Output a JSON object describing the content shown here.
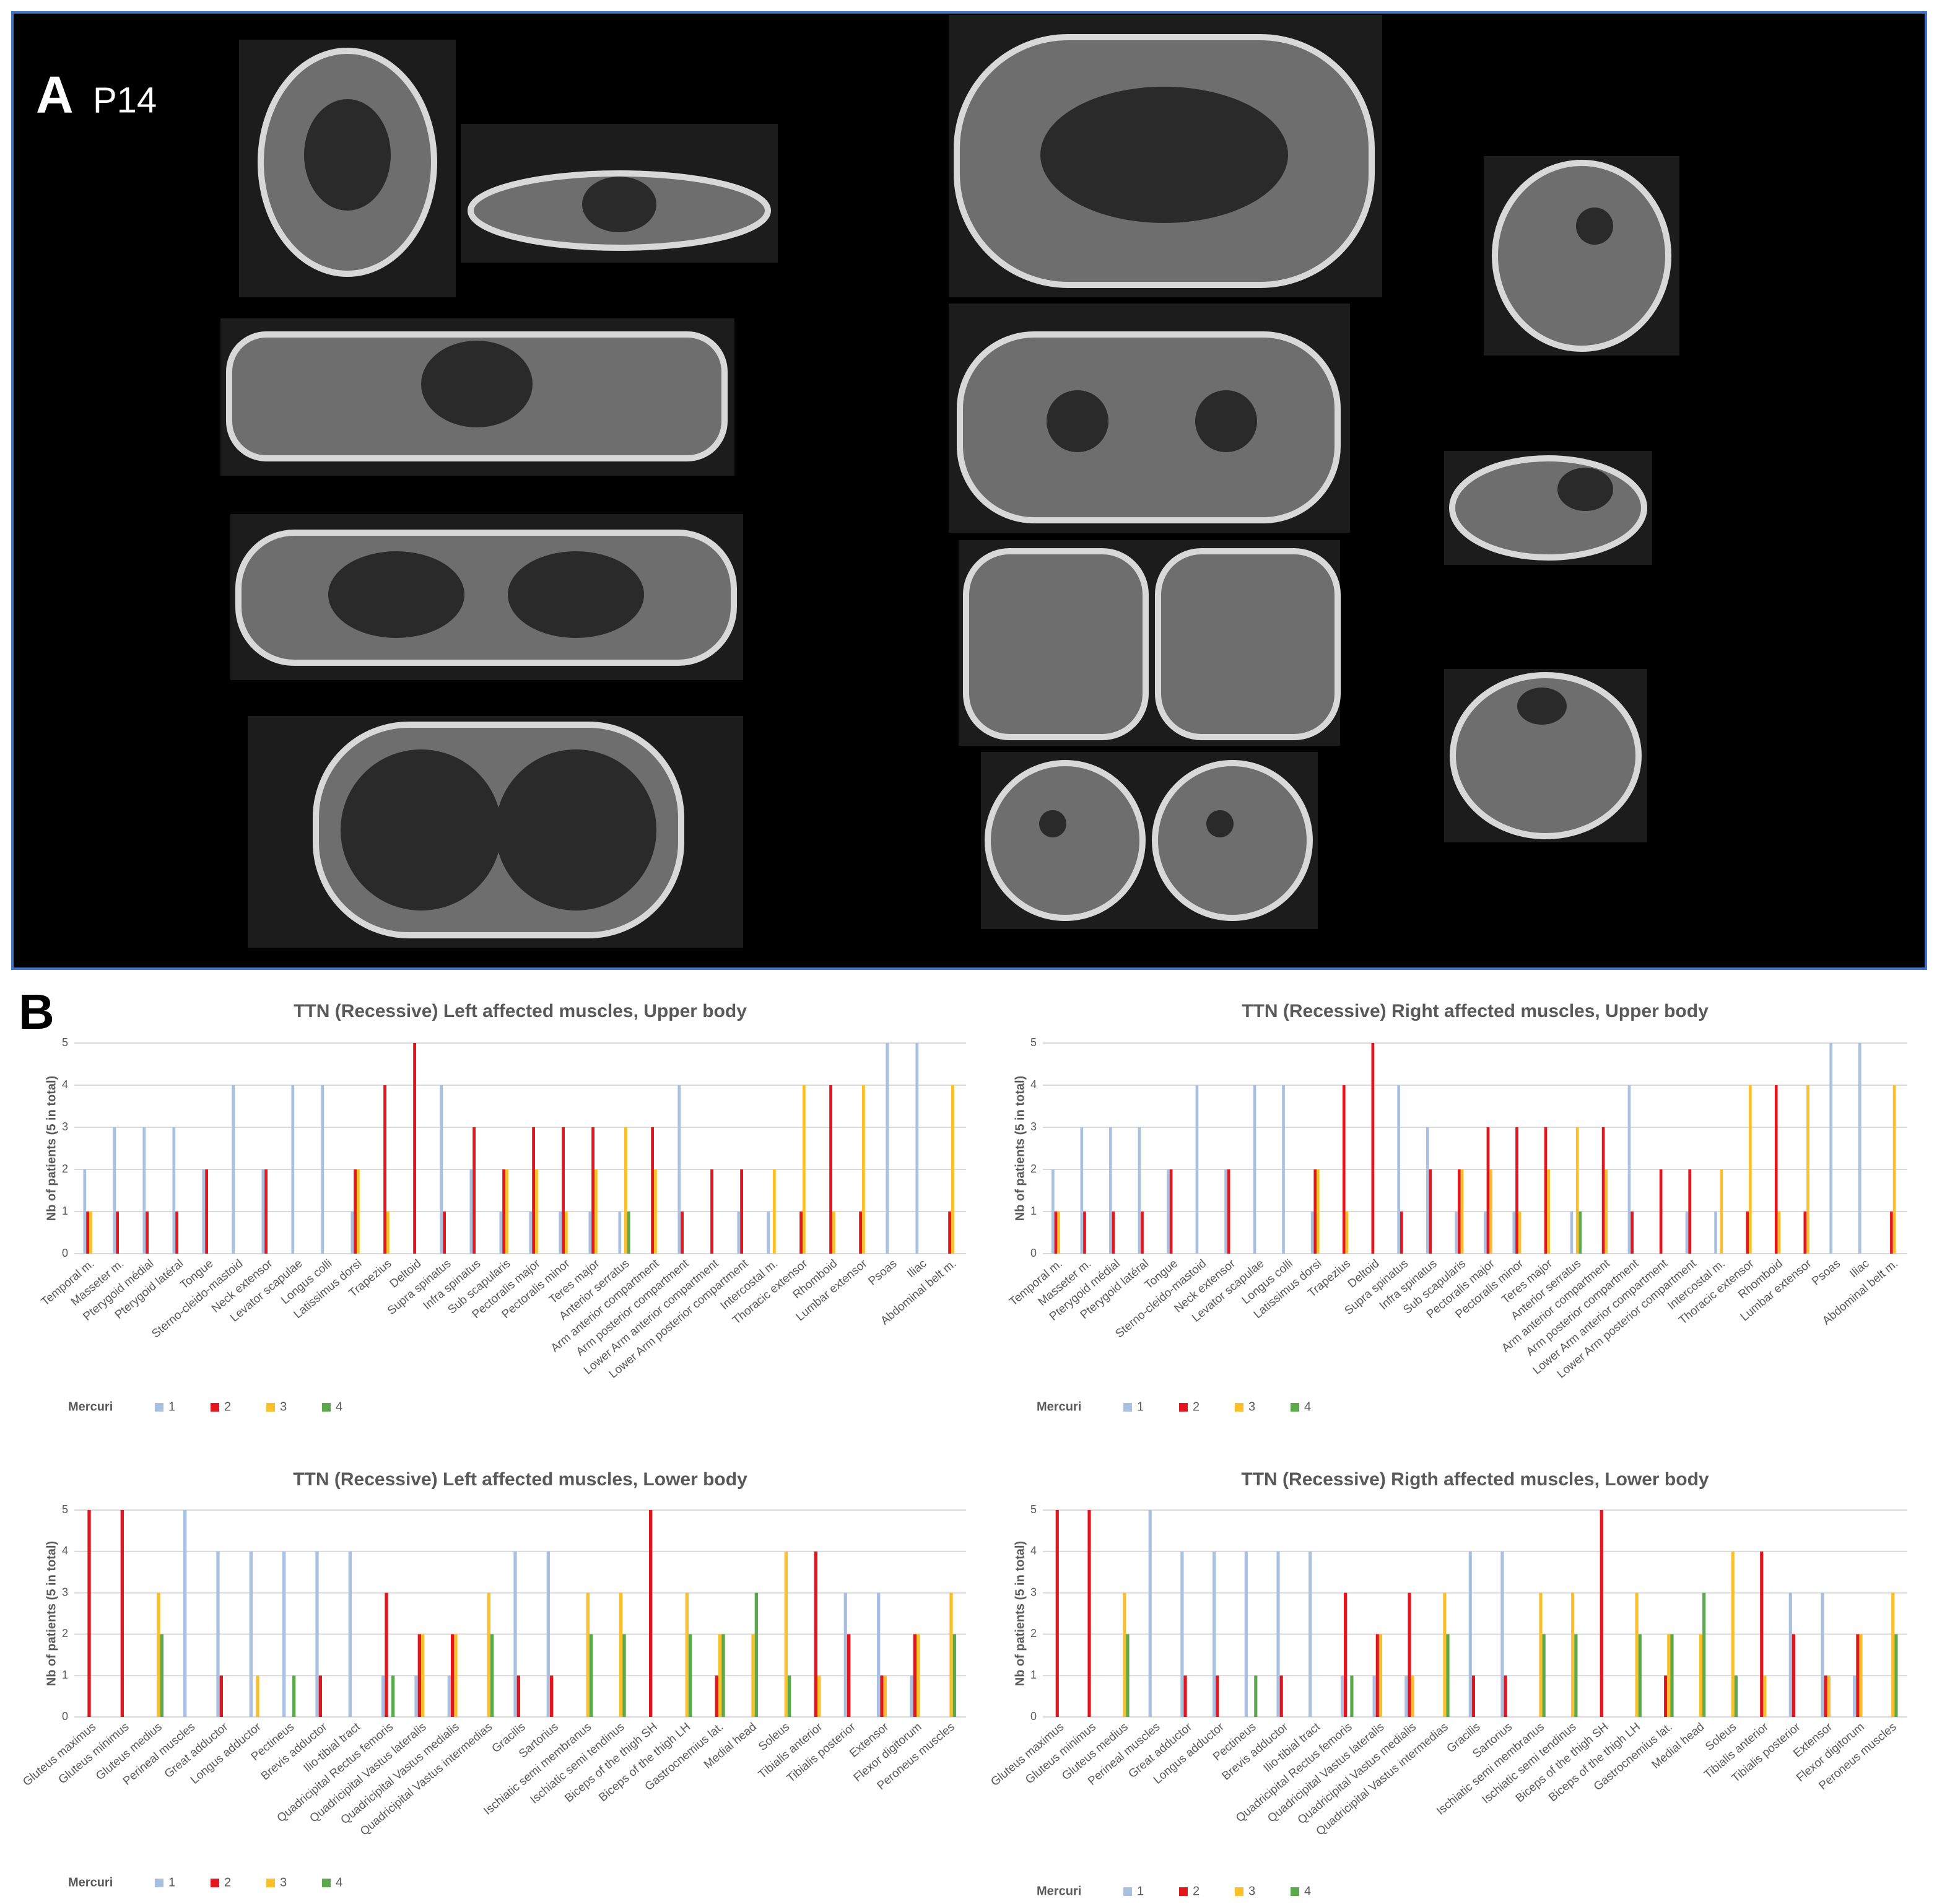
{
  "panels": {
    "a": "A",
    "a_patient": "P14",
    "b": "B"
  },
  "chart_data": [
    {
      "type": "bar",
      "title": "TTN (Recessive) Left affected muscles, Upper body",
      "ylabel": "Nb of patients (5 in total)",
      "legend_title": "Mercuri",
      "categories": [
        "Temporal m.",
        "Masseter m.",
        "Pterygoid médial",
        "Pterygoid latéral",
        "Tongue",
        "Sterno-cleido-mastoid",
        "Neck extensor",
        "Levator scapulae",
        "Longus colli",
        "Latissimus dorsi",
        "Trapezius",
        "Deltoid",
        "Supra spinatus",
        "Infra spinatus",
        "Sub scapularis",
        "Pectoralis major",
        "Pectoralis minor",
        "Teres major",
        "Anterior serratus",
        "Arm anterior compartment",
        "Arm posterior compartment",
        "Lower Arm anterior compartment",
        "Lower Arm posterior compartment",
        "Intercostal m.",
        "Thoracic extensor",
        "Rhomboid",
        "Lumbar extensor",
        "Psoas",
        "Iliac",
        "Abdominal belt m."
      ],
      "series": [
        {
          "name": "1",
          "color": "#aac0e0",
          "values": [
            2,
            3,
            3,
            3,
            2,
            4,
            2,
            4,
            4,
            1,
            0,
            0,
            4,
            2,
            1,
            1,
            1,
            1,
            1,
            0,
            4,
            0,
            1,
            1,
            0,
            0,
            0,
            5,
            5,
            0
          ]
        },
        {
          "name": "2",
          "color": "#e3161d",
          "values": [
            1,
            1,
            1,
            1,
            2,
            0,
            2,
            0,
            0,
            2,
            4,
            5,
            1,
            3,
            2,
            3,
            3,
            3,
            0,
            3,
            1,
            2,
            2,
            0,
            1,
            4,
            1,
            0,
            0,
            1
          ]
        },
        {
          "name": "3",
          "color": "#fbbf2b",
          "values": [
            1,
            0,
            0,
            0,
            0,
            0,
            0,
            0,
            0,
            2,
            1,
            0,
            0,
            0,
            2,
            2,
            1,
            2,
            3,
            2,
            0,
            0,
            0,
            2,
            4,
            1,
            4,
            0,
            0,
            4
          ]
        },
        {
          "name": "4",
          "color": "#5aa94b",
          "values": [
            0,
            0,
            0,
            0,
            0,
            0,
            0,
            0,
            0,
            0,
            0,
            0,
            0,
            0,
            0,
            0,
            0,
            0,
            1,
            0,
            0,
            0,
            0,
            0,
            0,
            0,
            0,
            0,
            0,
            0
          ]
        }
      ],
      "ylim": [
        0,
        5
      ],
      "yticks": [
        0,
        1,
        2,
        3,
        4,
        5
      ],
      "grid": true
    },
    {
      "type": "bar",
      "title": "TTN (Recessive) Right affected muscles, Upper body",
      "ylabel": "Nb of patients (5 in total)",
      "legend_title": "Mercuri",
      "categories": [
        "Temporal m.",
        "Masseter m.",
        "Pterygoid médial",
        "Pterygoid latéral",
        "Tongue",
        "Sterno-cleido-mastoid",
        "Neck extensor",
        "Levator scapulae",
        "Longus colli",
        "Latissimus dorsi",
        "Trapezius",
        "Deltoid",
        "Supra spinatus",
        "Infra spinatus",
        "Sub scapularis",
        "Pectoralis major",
        "Pectoralis minor",
        "Teres major",
        "Anterior serratus",
        "Arm anterior compartment",
        "Arm posterior compartment",
        "Lower Arm anterior compartment",
        "Lower Arm posterior compartment",
        "Intercostal m.",
        "Thoracic extensor",
        "Rhomboid",
        "Lumbar extensor",
        "Psoas",
        "Iliac",
        "Abdominal belt m."
      ],
      "series": [
        {
          "name": "1",
          "color": "#aac0e0",
          "values": [
            2,
            3,
            3,
            3,
            2,
            4,
            2,
            4,
            4,
            1,
            0,
            0,
            4,
            3,
            1,
            1,
            1,
            0,
            1,
            0,
            4,
            0,
            1,
            1,
            0,
            0,
            0,
            5,
            5,
            0
          ]
        },
        {
          "name": "2",
          "color": "#e3161d",
          "values": [
            1,
            1,
            1,
            1,
            2,
            0,
            2,
            0,
            0,
            2,
            4,
            5,
            1,
            2,
            2,
            3,
            3,
            3,
            0,
            3,
            1,
            2,
            2,
            0,
            1,
            4,
            1,
            0,
            0,
            1
          ]
        },
        {
          "name": "3",
          "color": "#fbbf2b",
          "values": [
            1,
            0,
            0,
            0,
            0,
            0,
            0,
            0,
            0,
            2,
            1,
            0,
            0,
            0,
            2,
            2,
            1,
            2,
            3,
            2,
            0,
            0,
            0,
            2,
            4,
            1,
            4,
            0,
            0,
            4
          ]
        },
        {
          "name": "4",
          "color": "#5aa94b",
          "values": [
            0,
            0,
            0,
            0,
            0,
            0,
            0,
            0,
            0,
            0,
            0,
            0,
            0,
            0,
            0,
            0,
            0,
            0,
            1,
            0,
            0,
            0,
            0,
            0,
            0,
            0,
            0,
            0,
            0,
            0
          ]
        }
      ],
      "ylim": [
        0,
        5
      ],
      "yticks": [
        0,
        1,
        2,
        3,
        4,
        5
      ],
      "grid": true
    },
    {
      "type": "bar",
      "title": "TTN (Recessive) Left affected muscles, Lower body",
      "ylabel": "Nb of patients (5 in total)",
      "legend_title": "Mercuri",
      "categories": [
        "Gluteus maximus",
        "Gluteus minimus",
        "Gluteus medius",
        "Perineal muscles",
        "Great adductor",
        "Longus adductor",
        "Pectineus",
        "Brevis adductor",
        "Ilio-tibial tract",
        "Quadricipital Rectus femoris",
        "Quadricipital Vastus lateralis",
        "Quadricipital Vastus medialis",
        "Quadricipital Vastus intermedias",
        "Gracilis",
        "Sartorius",
        "Ischiatic semi membranus",
        "Ischiatic semi tendinus",
        "Biceps of the thigh SH",
        "Biceps of the thigh LH",
        "Gastrocnemius lat.",
        "Medial head",
        "Soleus",
        "Tibialis anterior",
        "Tibialis posterior",
        "Extensor",
        "Flexor digitorum",
        "Peroneus muscles"
      ],
      "series": [
        {
          "name": "1",
          "color": "#aac0e0",
          "values": [
            0,
            0,
            0,
            5,
            4,
            4,
            4,
            4,
            4,
            1,
            1,
            1,
            0,
            4,
            4,
            0,
            0,
            0,
            0,
            0,
            0,
            0,
            0,
            3,
            3,
            1,
            0
          ]
        },
        {
          "name": "2",
          "color": "#e3161d",
          "values": [
            5,
            5,
            0,
            0,
            1,
            0,
            0,
            1,
            0,
            3,
            2,
            2,
            0,
            1,
            1,
            0,
            0,
            5,
            0,
            1,
            0,
            0,
            4,
            2,
            1,
            2,
            0
          ]
        },
        {
          "name": "3",
          "color": "#fbbf2b",
          "values": [
            0,
            0,
            3,
            0,
            0,
            1,
            0,
            0,
            0,
            0,
            2,
            2,
            3,
            0,
            0,
            3,
            3,
            0,
            3,
            2,
            2,
            4,
            1,
            0,
            1,
            2,
            3
          ]
        },
        {
          "name": "4",
          "color": "#5aa94b",
          "values": [
            0,
            0,
            2,
            0,
            0,
            0,
            1,
            0,
            0,
            1,
            0,
            0,
            2,
            0,
            0,
            2,
            2,
            0,
            2,
            2,
            3,
            1,
            0,
            0,
            0,
            0,
            2
          ]
        }
      ],
      "ylim": [
        0,
        5
      ],
      "yticks": [
        0,
        1,
        2,
        3,
        4,
        5
      ],
      "grid": true
    },
    {
      "type": "bar",
      "title": "TTN (Recessive) Rigth affected muscles, Lower body",
      "ylabel": "Nb of patients (5 in total)",
      "legend_title": "Mercuri",
      "categories": [
        "Gluteus maximus",
        "Gluteus minimus",
        "Gluteus medius",
        "Perineal muscles",
        "Great adductor",
        "Longus adductor",
        "Pectineus",
        "Brevis adductor",
        "Ilio-tibial tract",
        "Quadricipital Rectus femoris",
        "Quadricipital Vastus lateralis",
        "Quadricipital Vastus medialis",
        "Quadricipital Vastus intermedias",
        "Gracilis",
        "Sartorius",
        "Ischiatic semi membranus",
        "Ischiatic semi tendinus",
        "Biceps of the thigh SH",
        "Biceps of the thigh LH",
        "Gastrocnemius lat.",
        "Medial head",
        "Soleus",
        "Tibialis anterior",
        "Tibialis posterior",
        "Extensor",
        "Flexor digitorum",
        "Peroneus muscles"
      ],
      "series": [
        {
          "name": "1",
          "color": "#aac0e0",
          "values": [
            0,
            0,
            0,
            5,
            4,
            4,
            4,
            4,
            4,
            1,
            1,
            1,
            0,
            4,
            4,
            0,
            0,
            0,
            0,
            0,
            0,
            0,
            0,
            3,
            3,
            1,
            0
          ]
        },
        {
          "name": "2",
          "color": "#e3161d",
          "values": [
            5,
            5,
            0,
            0,
            1,
            1,
            0,
            1,
            0,
            3,
            2,
            3,
            0,
            1,
            1,
            0,
            0,
            5,
            0,
            1,
            0,
            0,
            4,
            2,
            1,
            2,
            0
          ]
        },
        {
          "name": "3",
          "color": "#fbbf2b",
          "values": [
            0,
            0,
            3,
            0,
            0,
            0,
            0,
            0,
            0,
            0,
            2,
            1,
            3,
            0,
            0,
            3,
            3,
            0,
            3,
            2,
            2,
            4,
            1,
            0,
            1,
            2,
            3
          ]
        },
        {
          "name": "4",
          "color": "#5aa94b",
          "values": [
            0,
            0,
            2,
            0,
            0,
            0,
            1,
            0,
            0,
            1,
            0,
            0,
            2,
            0,
            0,
            2,
            2,
            0,
            2,
            2,
            3,
            1,
            0,
            0,
            0,
            0,
            2
          ]
        }
      ],
      "ylim": [
        0,
        5
      ],
      "yticks": [
        0,
        1,
        2,
        3,
        4,
        5
      ],
      "grid": true
    }
  ]
}
